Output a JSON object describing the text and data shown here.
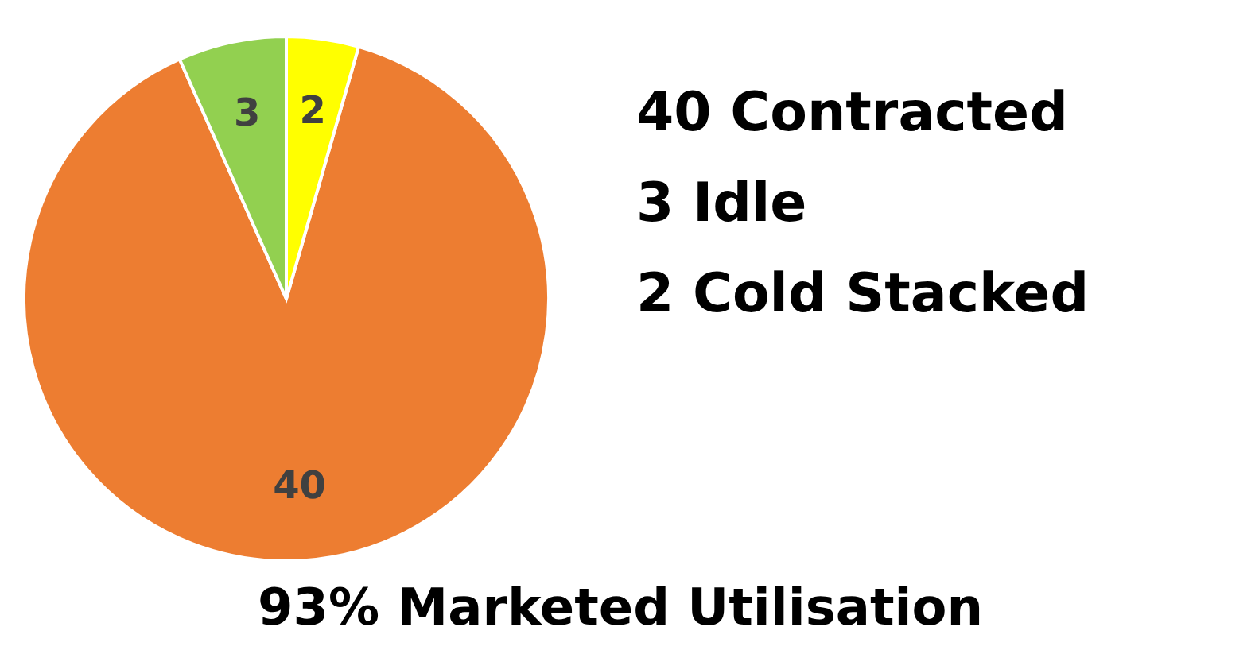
{
  "chart_data": {
    "type": "pie",
    "categories": [
      null,
      null,
      null
    ],
    "values": [
      40,
      3,
      2
    ],
    "colors": [
      "#ed7d31",
      "#92d050",
      "#ffff00"
    ],
    "data_labels": true,
    "annotations": [
      "40 Contracted",
      "3 Idle",
      "2 Cold Stacked",
      "93% Marketed Utilisation"
    ]
  }
}
